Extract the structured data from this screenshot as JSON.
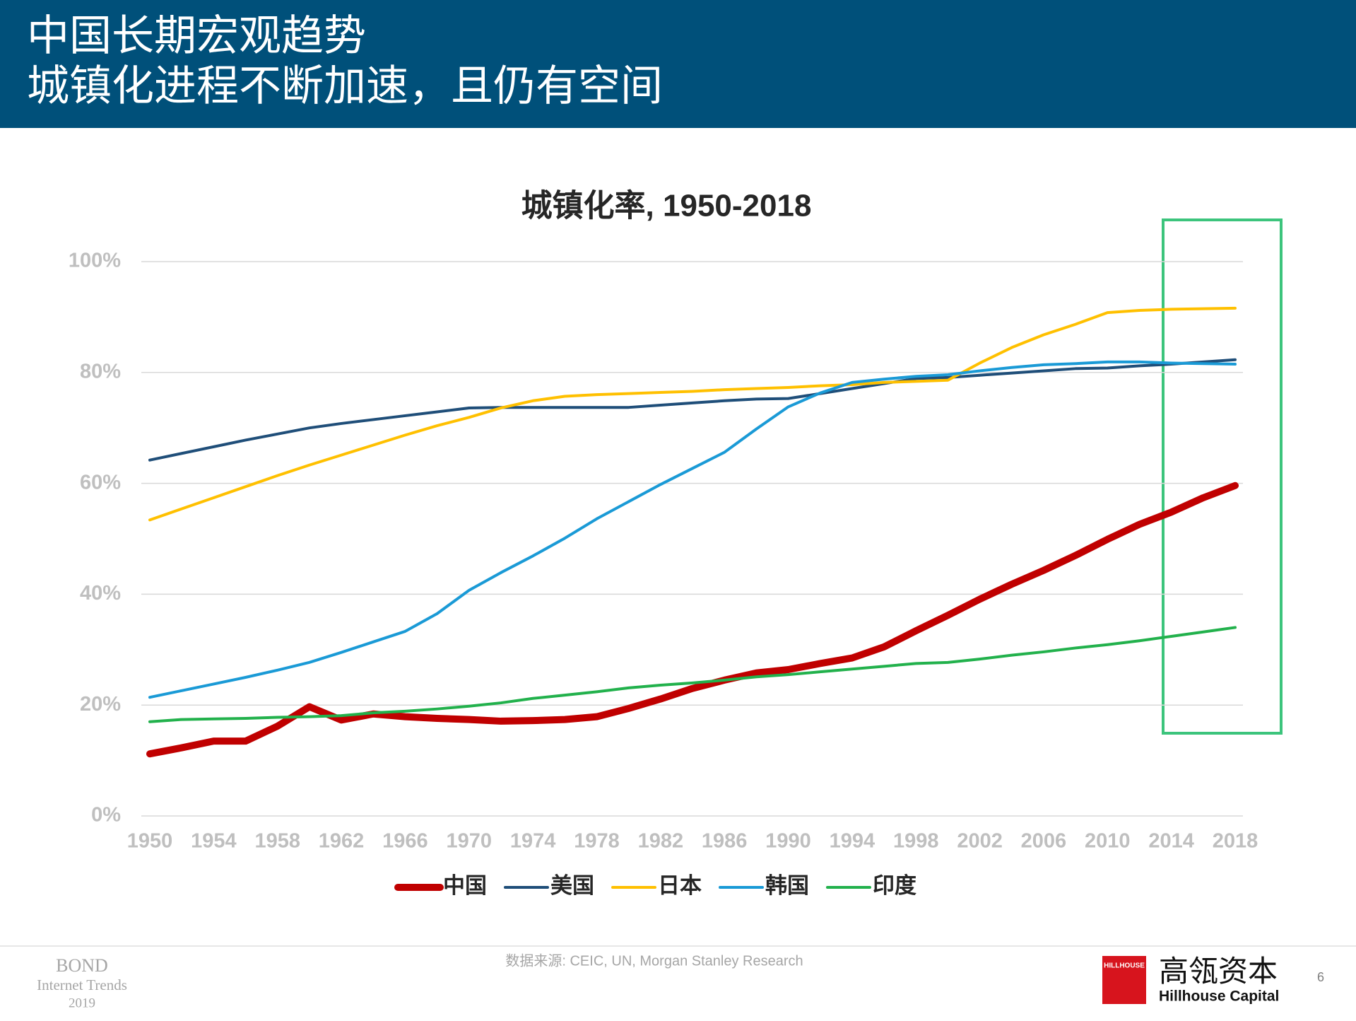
{
  "header": {
    "line1": "中国长期宏观趋势",
    "line2": "城镇化进程不断加速，且仍有空间"
  },
  "chart_data": {
    "type": "line",
    "title": "城镇化率, 1950-2018",
    "x": [
      1950,
      1952,
      1954,
      1956,
      1958,
      1960,
      1962,
      1964,
      1966,
      1968,
      1970,
      1972,
      1974,
      1976,
      1978,
      1980,
      1982,
      1984,
      1986,
      1988,
      1990,
      1992,
      1994,
      1996,
      1998,
      2000,
      2002,
      2004,
      2006,
      2008,
      2010,
      2012,
      2014,
      2016,
      2018
    ],
    "xlim": [
      1950,
      2018
    ],
    "xticks": [
      1950,
      1954,
      1958,
      1962,
      1966,
      1970,
      1974,
      1978,
      1982,
      1986,
      1990,
      1994,
      1998,
      2002,
      2006,
      2010,
      2014,
      2018
    ],
    "ylim": [
      0,
      100
    ],
    "yticks": [
      {
        "value": 0,
        "label": "0%"
      },
      {
        "value": 20,
        "label": "20%"
      },
      {
        "value": 40,
        "label": "40%"
      },
      {
        "value": 60,
        "label": "60%"
      },
      {
        "value": 80,
        "label": "80%"
      },
      {
        "value": 100,
        "label": "100%"
      }
    ],
    "grid": true,
    "series": [
      {
        "name": "中国",
        "color": "#c00000",
        "width": 10,
        "values": [
          11.2,
          12.3,
          13.5,
          13.5,
          16.2,
          19.7,
          17.3,
          18.4,
          17.9,
          17.6,
          17.4,
          17.1,
          17.2,
          17.4,
          17.9,
          19.4,
          21.1,
          23.0,
          24.5,
          25.8,
          26.4,
          27.5,
          28.5,
          30.5,
          33.4,
          36.2,
          39.1,
          41.8,
          44.3,
          47.0,
          49.9,
          52.6,
          54.8,
          57.4,
          59.6
        ]
      },
      {
        "name": "美国",
        "color": "#1f4e79",
        "width": 4,
        "values": [
          64.2,
          65.4,
          66.6,
          67.8,
          68.9,
          70.0,
          70.8,
          71.5,
          72.2,
          72.9,
          73.6,
          73.7,
          73.7,
          73.7,
          73.7,
          73.7,
          74.1,
          74.5,
          74.9,
          75.2,
          75.3,
          76.2,
          77.1,
          78.0,
          78.9,
          79.1,
          79.5,
          79.9,
          80.3,
          80.7,
          80.8,
          81.2,
          81.5,
          81.9,
          82.3
        ]
      },
      {
        "name": "日本",
        "color": "#ffc000",
        "width": 4,
        "values": [
          53.4,
          55.4,
          57.4,
          59.4,
          61.4,
          63.3,
          65.1,
          66.9,
          68.7,
          70.4,
          71.9,
          73.6,
          74.9,
          75.7,
          76.0,
          76.2,
          76.4,
          76.6,
          76.9,
          77.1,
          77.3,
          77.6,
          77.8,
          78.2,
          78.4,
          78.6,
          81.7,
          84.5,
          86.8,
          88.7,
          90.8,
          91.2,
          91.4,
          91.5,
          91.6
        ]
      },
      {
        "name": "韩国",
        "color": "#1a9ad6",
        "width": 4,
        "values": [
          21.4,
          22.6,
          23.8,
          25.0,
          26.3,
          27.7,
          29.5,
          31.4,
          33.3,
          36.5,
          40.7,
          43.9,
          46.9,
          50.1,
          53.6,
          56.7,
          59.8,
          62.7,
          65.6,
          69.8,
          73.8,
          76.3,
          78.2,
          78.8,
          79.3,
          79.6,
          80.3,
          80.9,
          81.4,
          81.6,
          81.9,
          81.9,
          81.7,
          81.6,
          81.5
        ]
      },
      {
        "name": "印度",
        "color": "#22b14c",
        "width": 4,
        "values": [
          17.0,
          17.4,
          17.5,
          17.6,
          17.8,
          17.9,
          18.1,
          18.6,
          18.9,
          19.3,
          19.8,
          20.4,
          21.2,
          21.8,
          22.4,
          23.1,
          23.6,
          24.0,
          24.5,
          25.1,
          25.5,
          26.0,
          26.5,
          27.0,
          27.5,
          27.7,
          28.3,
          29.0,
          29.6,
          30.3,
          30.9,
          31.6,
          32.4,
          33.2,
          34.0
        ]
      }
    ],
    "legend": "bottom",
    "source": "数据来源: CEIC, UN, Morgan Stanley Research"
  },
  "footer": {
    "bond": "BOND",
    "trends": "Internet Trends",
    "year": "2019",
    "logo_mark": "HILLHOUSE",
    "logo_cn": "高瓴资本",
    "logo_en": "Hillhouse Capital",
    "page": "6"
  }
}
